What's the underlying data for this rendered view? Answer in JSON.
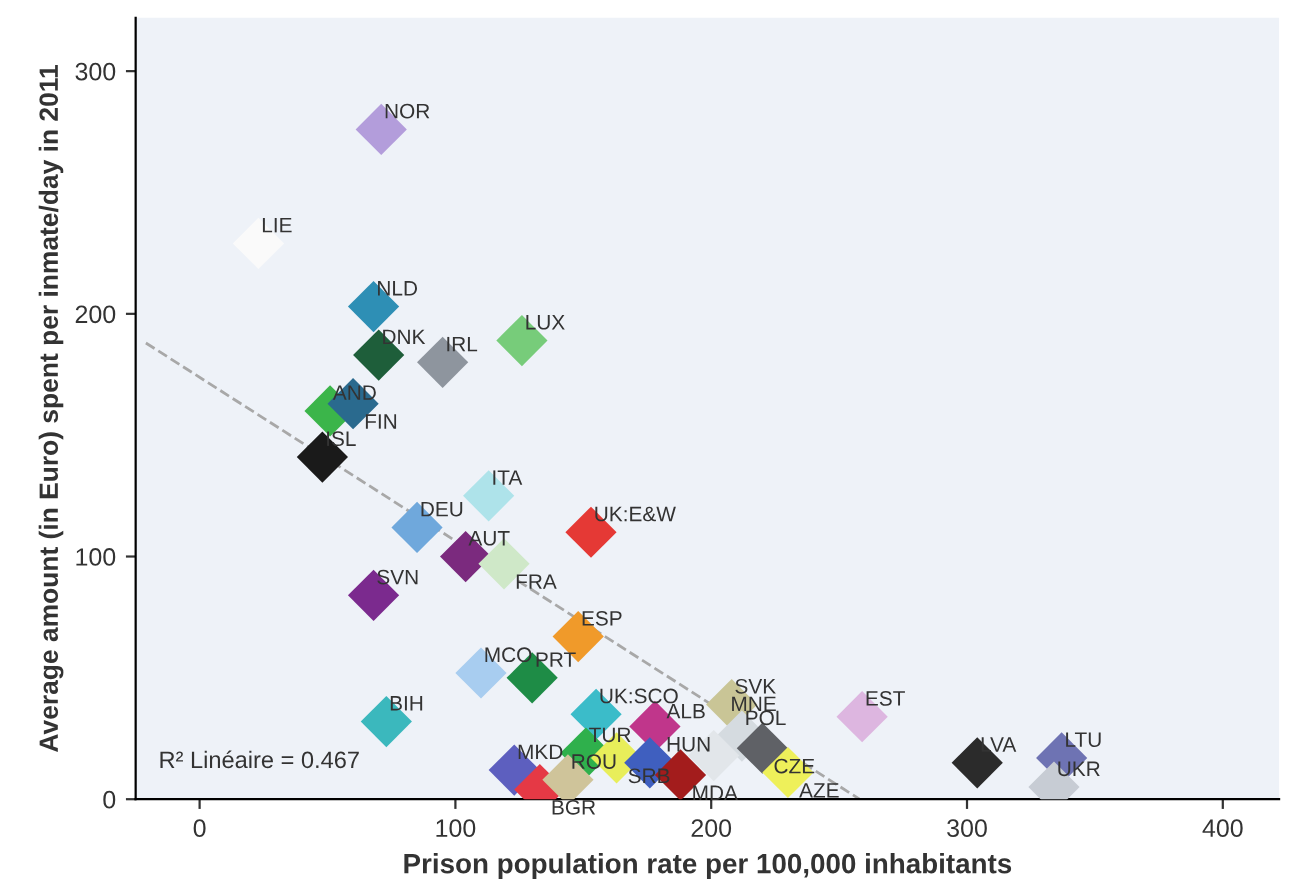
{
  "chart_data": {
    "type": "scatter",
    "xlabel": "Prison population rate per 100,000 inhabitants",
    "ylabel": "Average amount (in Euro) spent per inmate/day in 2011",
    "xlim": [
      -25,
      422
    ],
    "ylim": [
      0,
      322
    ],
    "xticks": [
      0,
      100,
      200,
      300,
      400
    ],
    "yticks": [
      0,
      100,
      200,
      300
    ],
    "grid": false,
    "legend": false,
    "marker": "diamond",
    "series": [
      {
        "x": [
          71,
          23,
          68,
          70,
          95,
          126,
          51,
          60,
          48,
          113,
          85,
          104,
          119,
          153,
          68,
          148,
          110,
          130,
          73,
          155,
          178,
          123,
          133,
          151,
          144,
          163,
          176,
          188,
          208,
          212,
          220,
          230,
          201,
          259,
          304,
          337,
          334
        ],
        "values": [
          276,
          229,
          203,
          183,
          180,
          189,
          160,
          163,
          141,
          125,
          112,
          100,
          97,
          110,
          84,
          67,
          52,
          50,
          32,
          35,
          30,
          12,
          4,
          19,
          8,
          17,
          15,
          10,
          39,
          26,
          21,
          11,
          18,
          34,
          15,
          17,
          5
        ],
        "colors": [
          "#b39ddb",
          "#fafafa",
          "#2e8fb5",
          "#1e5e3a",
          "#8e959e",
          "#77cc7a",
          "#3bb54a",
          "#2a6a8e",
          "#1a1a1a",
          "#aee3ea",
          "#6fa8dc",
          "#7b2a7e",
          "#cfe8c8",
          "#e53935",
          "#7b2a8e",
          "#f09a2a",
          "#a8cdf0",
          "#1e8c46",
          "#3bb8bd",
          "#3bbcc9",
          "#c0368b",
          "#5d5fbf",
          "#e53945",
          "#2fb04c",
          "#cfc49a",
          "#e8ee5a",
          "#3f5fbf",
          "#a31c1c",
          "#c9c596",
          "#d5dbe0",
          "#5f6166",
          "#eef05a",
          "#e2e6ea",
          "#ddb6e0",
          "#2b2b2b",
          "#6e73b3",
          "#c7ccd4"
        ]
      },
      {
        "type": "line",
        "x": [
          -21,
          258
        ],
        "values": [
          188,
          0
        ],
        "color": "#a8a8a8",
        "line_style": "dashed",
        "marker": "none"
      }
    ],
    "annotations": [
      "R² Linéaire = 0.467",
      {
        "text": "NOR",
        "x": 71,
        "y": 276
      },
      {
        "text": "LIE",
        "x": 23,
        "y": 229
      },
      {
        "text": "NLD",
        "x": 68,
        "y": 203
      },
      {
        "text": "DNK",
        "x": 70,
        "y": 183
      },
      {
        "text": "IRL",
        "x": 95,
        "y": 180
      },
      {
        "text": "LUX",
        "x": 126,
        "y": 189
      },
      {
        "text": "AND",
        "x": 51,
        "y": 160
      },
      {
        "text": "FIN",
        "x": 60,
        "y": 163
      },
      {
        "text": "ISL",
        "x": 48,
        "y": 141
      },
      {
        "text": "ITA",
        "x": 113,
        "y": 125
      },
      {
        "text": "DEU",
        "x": 85,
        "y": 112
      },
      {
        "text": "AUT",
        "x": 104,
        "y": 100
      },
      {
        "text": "FRA",
        "x": 119,
        "y": 97
      },
      {
        "text": "UK:E&W",
        "x": 153,
        "y": 110
      },
      {
        "text": "SVN",
        "x": 68,
        "y": 84
      },
      {
        "text": "ESP",
        "x": 148,
        "y": 67
      },
      {
        "text": "MCO",
        "x": 110,
        "y": 52
      },
      {
        "text": "PRT",
        "x": 130,
        "y": 50
      },
      {
        "text": "BIH",
        "x": 73,
        "y": 32
      },
      {
        "text": "UK:SCO",
        "x": 155,
        "y": 35
      },
      {
        "text": "HUN",
        "x": 178,
        "y": 30
      },
      {
        "text": "MKD",
        "x": 123,
        "y": 12
      },
      {
        "text": "BGR",
        "x": 133,
        "y": 4
      },
      {
        "text": "TUR",
        "x": 151,
        "y": 19
      },
      {
        "text": "ROU",
        "x": 144,
        "y": 8
      },
      {
        "text": "SRB",
        "x": 163,
        "y": 17
      },
      {
        "text": "ALB",
        "x": 176,
        "y": 15
      },
      {
        "text": "MDA",
        "x": 188,
        "y": 10
      },
      {
        "text": "SVK",
        "x": 208,
        "y": 39
      },
      {
        "text": "POL",
        "x": 212,
        "y": 26
      },
      {
        "text": "CZE",
        "x": 220,
        "y": 21
      },
      {
        "text": "AZE",
        "x": 230,
        "y": 11
      },
      {
        "text": "MNE",
        "x": 201,
        "y": 18
      },
      {
        "text": "EST",
        "x": 259,
        "y": 34
      },
      {
        "text": "LVA",
        "x": 304,
        "y": 15
      },
      {
        "text": "LTU",
        "x": 337,
        "y": 17
      },
      {
        "text": "UKR",
        "x": 334,
        "y": 5
      }
    ]
  }
}
